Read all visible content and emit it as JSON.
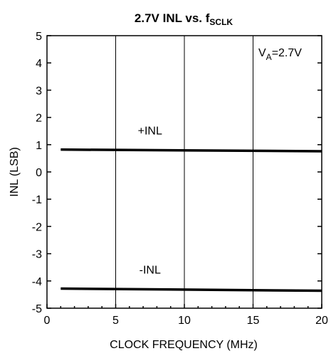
{
  "chart_data": {
    "type": "line",
    "title": "2.7V INL vs. f",
    "title_sub": "SCLK",
    "xlabel": "CLOCK FREQUENCY (MHz)",
    "ylabel": "INL (LSB)",
    "xlim": [
      0,
      20
    ],
    "ylim": [
      -5,
      5
    ],
    "xticks": [
      0,
      5,
      10,
      15,
      20
    ],
    "yticks": [
      -5,
      -4,
      -3,
      -2,
      -1,
      0,
      1,
      2,
      3,
      4,
      5
    ],
    "grid": true,
    "annotation": {
      "main": "V",
      "sub": "A",
      "rest": "=2.7V"
    },
    "series": [
      {
        "name": "+INL",
        "x": [
          1,
          20
        ],
        "y": [
          0.82,
          0.76
        ]
      },
      {
        "name": "-INL",
        "x": [
          1,
          20
        ],
        "y": [
          -4.28,
          -4.36
        ]
      }
    ]
  }
}
